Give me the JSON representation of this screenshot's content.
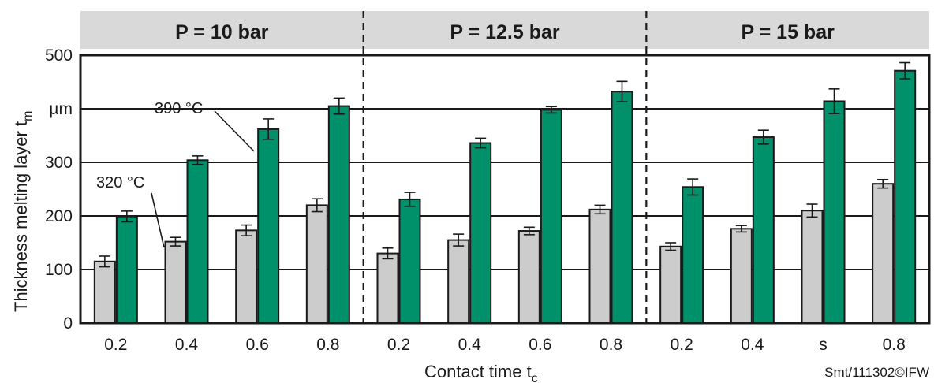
{
  "chart_data": {
    "type": "bar",
    "panels": [
      "P = 10 bar",
      "P = 12.5 bar",
      "P = 15 bar"
    ],
    "categories": [
      "0.2",
      "0.4",
      "0.6",
      "0.8",
      "0.2",
      "0.4",
      "0.6",
      "0.8",
      "0.2",
      "0.4",
      "s",
      "0.8"
    ],
    "series": [
      {
        "name": "320 °C",
        "color": "#cccccc",
        "values": [
          115,
          152,
          173,
          220,
          130,
          155,
          172,
          212,
          143,
          176,
          210,
          260
        ],
        "errors": [
          10,
          8,
          10,
          12,
          10,
          11,
          7,
          8,
          7,
          6,
          12,
          8
        ]
      },
      {
        "name": "390 °C",
        "color": "#00906a",
        "values": [
          199,
          304,
          362,
          405,
          231,
          336,
          398,
          432,
          254,
          347,
          414,
          471
        ],
        "errors": [
          10,
          8,
          19,
          15,
          13,
          9,
          6,
          19,
          15,
          13,
          23,
          15
        ]
      }
    ],
    "ylabel_main": "Thickness melting layer t",
    "ylabel_sub": "m",
    "xlabel_main": "Contact time t",
    "xlabel_sub": "c",
    "ytick_labels": [
      "0",
      "100",
      "200",
      "300",
      "µm",
      "500"
    ],
    "ytick_values": [
      0,
      100,
      200,
      300,
      400,
      500
    ],
    "ylim": [
      0,
      500
    ],
    "grid": true,
    "annotations": [
      "390 °C",
      "320 °C"
    ],
    "credit": "Smt/111302©IFW"
  }
}
